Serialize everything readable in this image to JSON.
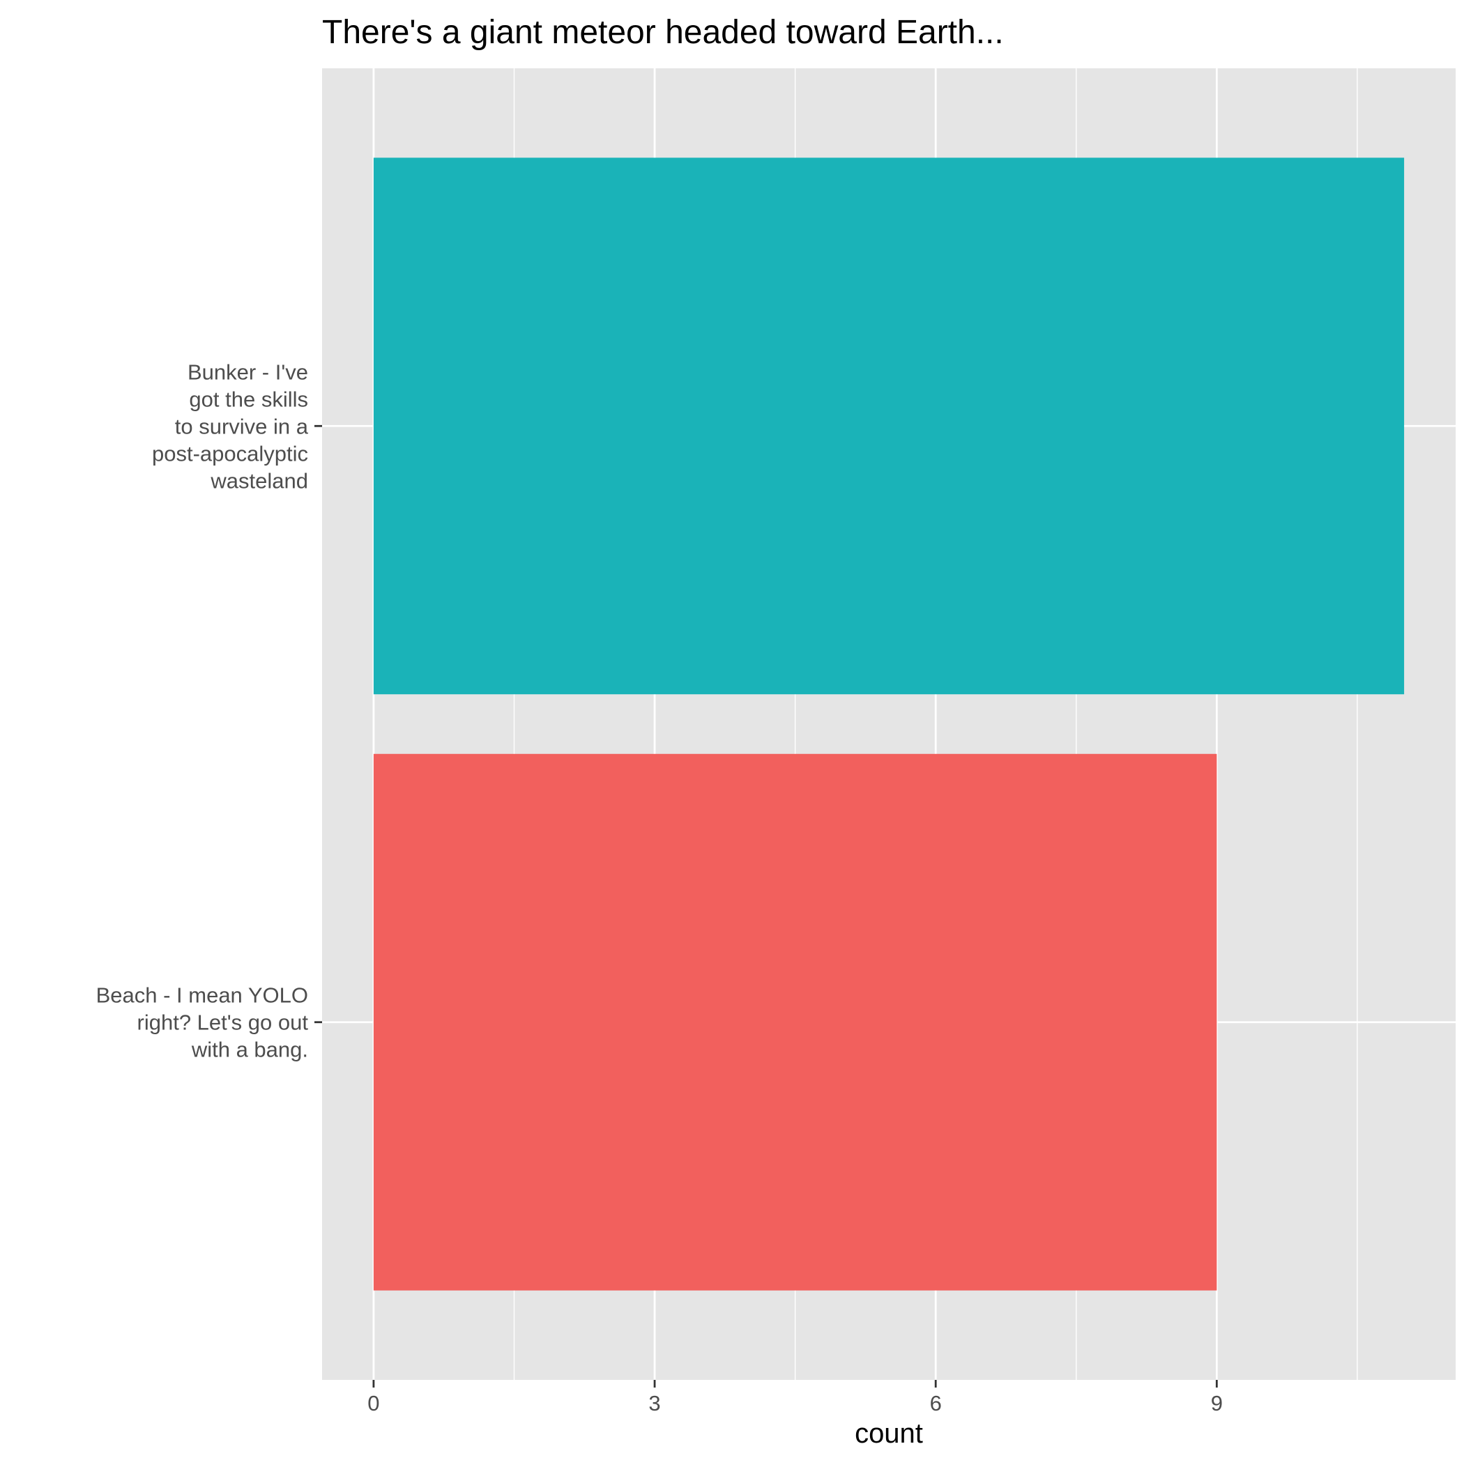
{
  "chart_data": {
    "type": "bar",
    "orientation": "horizontal",
    "title": "There's a giant meteor headed toward Earth...",
    "xlabel": "count",
    "ylabel": "",
    "xlim": [
      -0.55,
      11.55
    ],
    "x_ticks": [
      0,
      3,
      6,
      9
    ],
    "x_tick_labels": [
      "0",
      "3",
      "6",
      "9"
    ],
    "grid": true,
    "legend": "none",
    "panel_background": "#e5e5e5",
    "grid_color": "#ffffff",
    "categories": [
      {
        "label_lines": [
          "Bunker - I've",
          "got the skills",
          "to survive in a",
          "post-apocalyptic",
          "wasteland"
        ],
        "value": 11,
        "color": "#1ab3b8"
      },
      {
        "label_lines": [
          "Beach - I mean YOLO",
          "right? Let's go out",
          "with a bang."
        ],
        "value": 9,
        "color": "#f2605d"
      }
    ]
  }
}
